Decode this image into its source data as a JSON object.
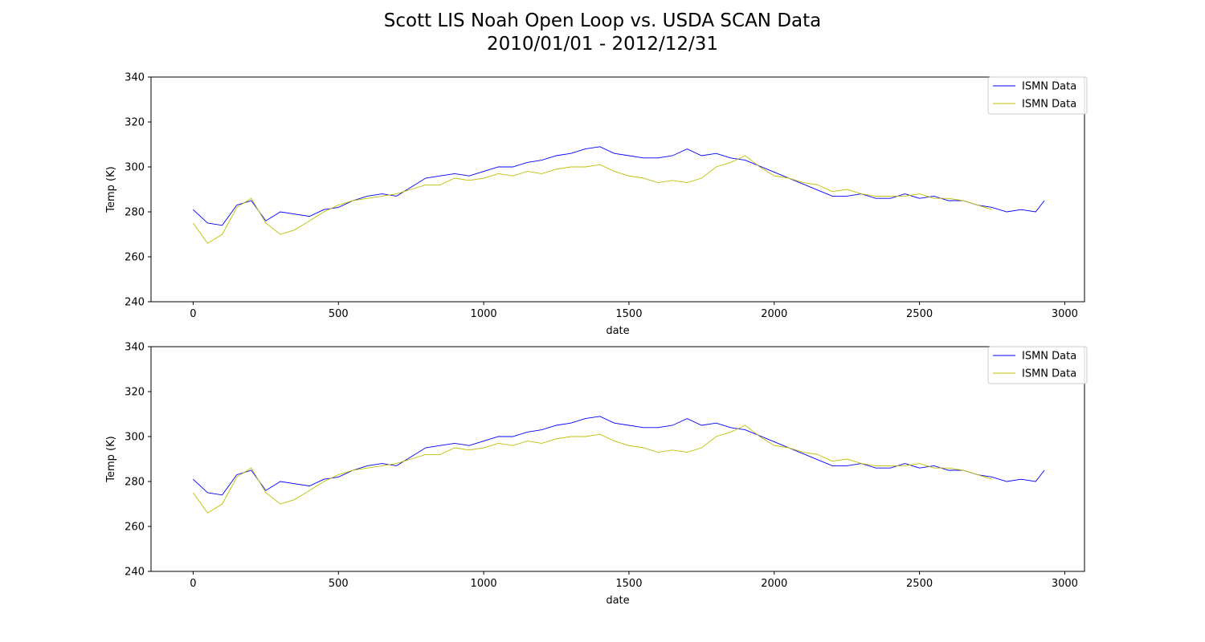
{
  "figure": {
    "title_line1": "Scott LIS Noah Open Loop vs. USDA SCAN Data",
    "title_line2": "2010/01/01 - 2012/12/31"
  },
  "colors": {
    "series_1": "#0000ff",
    "series_2": "#bfbf00"
  },
  "chart_data": [
    {
      "type": "line",
      "title": "",
      "xlabel": "date",
      "ylabel": "Temp (K)",
      "xlim": [
        -145,
        3068
      ],
      "ylim": [
        240,
        340
      ],
      "xticks": [
        0,
        500,
        1000,
        1500,
        2000,
        2500,
        3000
      ],
      "yticks": [
        240,
        260,
        280,
        300,
        320,
        340
      ],
      "legend_position": "top-right",
      "grid": false,
      "series": [
        {
          "name": "ISMN Data",
          "color": "#0000ff",
          "x": [
            0,
            50,
            100,
            150,
            200,
            250,
            300,
            350,
            400,
            450,
            500,
            550,
            600,
            650,
            700,
            750,
            800,
            850,
            900,
            950,
            1000,
            1050,
            1100,
            1150,
            1200,
            1250,
            1300,
            1350,
            1400,
            1450,
            1500,
            1550,
            1600,
            1650,
            1700,
            1750,
            1800,
            1850,
            1900,
            2200,
            2250,
            2300,
            2350,
            2400,
            2450,
            2500,
            2550,
            2600,
            2650,
            2700,
            2750,
            2800,
            2850,
            2900,
            2930
          ],
          "y": [
            281,
            275,
            274,
            283,
            285,
            276,
            280,
            279,
            278,
            281,
            282,
            285,
            287,
            288,
            287,
            291,
            295,
            296,
            297,
            296,
            298,
            300,
            300,
            302,
            303,
            305,
            306,
            308,
            309,
            306,
            305,
            304,
            304,
            305,
            308,
            305,
            306,
            304,
            303,
            287,
            287,
            288,
            286,
            286,
            288,
            286,
            287,
            285,
            285,
            283,
            282,
            280,
            281,
            280,
            285
          ]
        },
        {
          "name": "ISMN Data",
          "color": "#bfbf00",
          "x": [
            0,
            50,
            100,
            150,
            200,
            250,
            300,
            350,
            400,
            450,
            500,
            550,
            600,
            650,
            700,
            750,
            800,
            850,
            900,
            950,
            1000,
            1050,
            1100,
            1150,
            1200,
            1250,
            1300,
            1350,
            1400,
            1450,
            1500,
            1550,
            1600,
            1650,
            1700,
            1750,
            1800,
            1850,
            1900,
            1950,
            2000,
            2050,
            2100,
            2150,
            2200,
            2250,
            2300,
            2350,
            2400,
            2450,
            2500,
            2550,
            2600,
            2650,
            2700,
            2750
          ],
          "y": [
            275,
            266,
            270,
            282,
            286,
            275,
            270,
            272,
            276,
            280,
            283,
            285,
            286,
            287,
            288,
            290,
            292,
            292,
            295,
            294,
            295,
            297,
            296,
            298,
            297,
            299,
            300,
            300,
            301,
            298,
            296,
            295,
            293,
            294,
            293,
            295,
            300,
            302,
            305,
            300,
            296,
            295,
            293,
            292,
            289,
            290,
            288,
            287,
            287,
            287,
            288,
            286,
            286,
            285,
            283,
            281
          ]
        }
      ]
    },
    {
      "type": "line",
      "title": "",
      "xlabel": "date",
      "ylabel": "Temp (K)",
      "xlim": [
        -145,
        3068
      ],
      "ylim": [
        240,
        340
      ],
      "xticks": [
        0,
        500,
        1000,
        1500,
        2000,
        2500,
        3000
      ],
      "yticks": [
        240,
        260,
        280,
        300,
        320,
        340
      ],
      "legend_position": "top-right",
      "grid": false,
      "series": [
        {
          "name": "ISMN Data",
          "color": "#0000ff",
          "x": [
            0,
            50,
            100,
            150,
            200,
            250,
            300,
            350,
            400,
            450,
            500,
            550,
            600,
            650,
            700,
            750,
            800,
            850,
            900,
            950,
            1000,
            1050,
            1100,
            1150,
            1200,
            1250,
            1300,
            1350,
            1400,
            1450,
            1500,
            1550,
            1600,
            1650,
            1700,
            1750,
            1800,
            1850,
            1900,
            2200,
            2250,
            2300,
            2350,
            2400,
            2450,
            2500,
            2550,
            2600,
            2650,
            2700,
            2750,
            2800,
            2850,
            2900,
            2930
          ],
          "y": [
            281,
            275,
            274,
            283,
            285,
            276,
            280,
            279,
            278,
            281,
            282,
            285,
            287,
            288,
            287,
            291,
            295,
            296,
            297,
            296,
            298,
            300,
            300,
            302,
            303,
            305,
            306,
            308,
            309,
            306,
            305,
            304,
            304,
            305,
            308,
            305,
            306,
            304,
            303,
            287,
            287,
            288,
            286,
            286,
            288,
            286,
            287,
            285,
            285,
            283,
            282,
            280,
            281,
            280,
            285
          ]
        },
        {
          "name": "ISMN Data",
          "color": "#bfbf00",
          "x": [
            0,
            50,
            100,
            150,
            200,
            250,
            300,
            350,
            400,
            450,
            500,
            550,
            600,
            650,
            700,
            750,
            800,
            850,
            900,
            950,
            1000,
            1050,
            1100,
            1150,
            1200,
            1250,
            1300,
            1350,
            1400,
            1450,
            1500,
            1550,
            1600,
            1650,
            1700,
            1750,
            1800,
            1850,
            1900,
            1950,
            2000,
            2050,
            2100,
            2150,
            2200,
            2250,
            2300,
            2350,
            2400,
            2450,
            2500,
            2550,
            2600,
            2650,
            2700,
            2750
          ],
          "y": [
            275,
            266,
            270,
            282,
            286,
            275,
            270,
            272,
            276,
            280,
            283,
            285,
            286,
            287,
            288,
            290,
            292,
            292,
            295,
            294,
            295,
            297,
            296,
            298,
            297,
            299,
            300,
            300,
            301,
            298,
            296,
            295,
            293,
            294,
            293,
            295,
            300,
            302,
            305,
            300,
            296,
            295,
            293,
            292,
            289,
            290,
            288,
            287,
            287,
            287,
            288,
            286,
            286,
            285,
            283,
            281
          ]
        }
      ]
    }
  ]
}
